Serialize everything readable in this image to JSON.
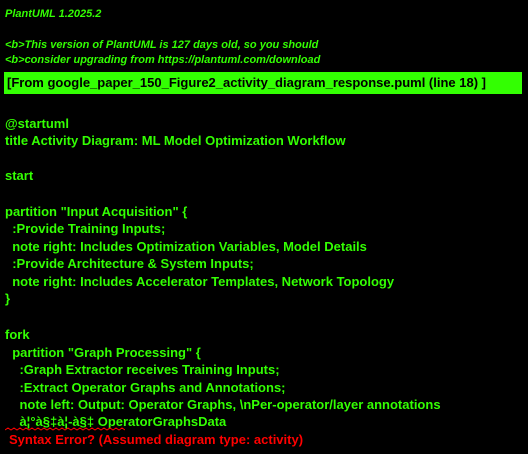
{
  "colors": {
    "background": "#000000",
    "text": "#33ff02",
    "banner_bg": "#33ff02",
    "banner_text": "#000000",
    "error": "#ff0000"
  },
  "header": {
    "version": "PlantUML 1.2025.2",
    "warning_line1": "<b>This version of PlantUML is 127 days old, so you should",
    "warning_line2": "<b>consider upgrading from https://plantuml.com/download"
  },
  "banner": {
    "text": "[From google_paper_150_Figure2_activity_diagram_response.puml (line 18) ]"
  },
  "source_lines": [
    "@startuml",
    "title Activity Diagram: ML Model Optimization Workflow",
    "start",
    "partition \"Input Acquisition\" {",
    "  :Provide Training Inputs;",
    "  note right: Includes Optimization Variables, Model Details",
    "  :Provide Architecture & System Inputs;",
    "  note right: Includes Accelerator Templates, Network Topology",
    "}",
    "fork",
    "  partition \"Graph Processing\" {",
    "    :Graph Extractor receives Training Inputs;",
    "    :Extract Operator Graphs and Annotations;",
    "    note left: Output: Operator Graphs, \\nPer-operator/layer annotations",
    "    à¦°à§‡à¦-à§‡ OperatorGraphsData"
  ],
  "error": {
    "message": "Syntax Error? (Assumed diagram type: activity)"
  }
}
